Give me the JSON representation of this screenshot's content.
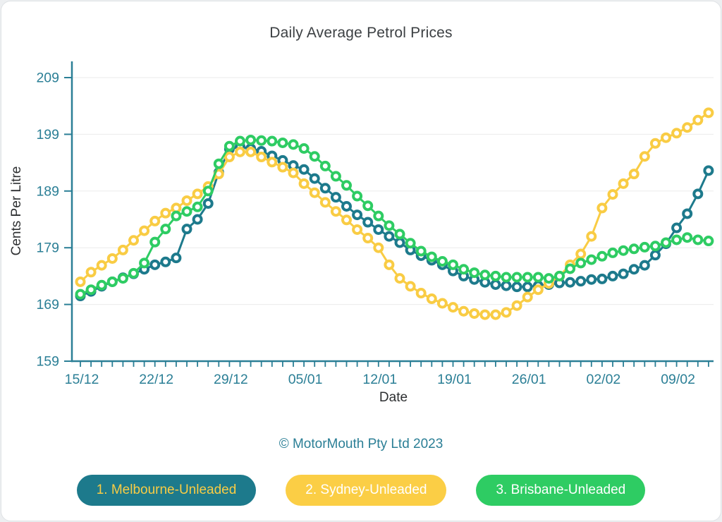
{
  "header": {
    "title": "Daily Average Petrol Prices"
  },
  "chart_data": {
    "type": "line",
    "title": "Daily Average Petrol Prices",
    "xlabel": "Date",
    "ylabel": "Cents Per Litre",
    "grid": "horizontal",
    "legend_position": "bottom",
    "marker": "hollow-circle",
    "axis_color": "#2b7f96",
    "grid_color": "#ebebeb",
    "ylim": [
      159,
      212
    ],
    "yticks": [
      159,
      169,
      179,
      189,
      199,
      209
    ],
    "x_start_date": "15/12",
    "x_end_date": "12/02",
    "x_points": 60,
    "x_tick_every_days": 7,
    "x_tick_labels": [
      "15/12",
      "22/12",
      "29/12",
      "05/01",
      "12/01",
      "19/01",
      "26/01",
      "02/02",
      "09/02"
    ],
    "series": [
      {
        "name": "1. Melbourne-Unleaded",
        "slug": "melbourne-unleaded",
        "color": "#1d7a8c",
        "values": [
          170.5,
          171.3,
          172.2,
          173.0,
          173.7,
          174.4,
          175.2,
          176.0,
          176.5,
          177.2,
          182.3,
          184.0,
          186.8,
          192.3,
          196.4,
          196.8,
          196.5,
          196.0,
          195.2,
          194.4,
          193.5,
          192.8,
          191.2,
          189.5,
          187.9,
          186.3,
          184.8,
          183.5,
          182.2,
          181.0,
          179.9,
          178.6,
          177.6,
          176.8,
          176.0,
          174.9,
          174.0,
          173.4,
          172.9,
          172.5,
          172.3,
          172.1,
          172.1,
          172.3,
          172.5,
          172.8,
          172.9,
          173.1,
          173.4,
          173.5,
          174.0,
          174.4,
          175.2,
          175.9,
          177.7,
          179.7,
          182.5,
          185.0,
          188.5,
          192.6
        ]
      },
      {
        "name": "2. Sydney-Unleaded",
        "slug": "sydney-unleaded",
        "color": "#f9cc44",
        "values": [
          173.0,
          174.7,
          175.9,
          177.1,
          178.6,
          180.3,
          182.0,
          183.7,
          185.1,
          186.0,
          187.3,
          188.5,
          189.8,
          192.0,
          195.0,
          195.9,
          195.9,
          195.0,
          194.1,
          193.2,
          192.2,
          190.3,
          188.7,
          187.0,
          185.4,
          183.9,
          182.2,
          180.7,
          179.0,
          176.0,
          173.6,
          172.2,
          171.0,
          170.0,
          169.2,
          168.5,
          167.8,
          167.4,
          167.2,
          167.2,
          167.6,
          168.8,
          170.3,
          171.6,
          172.7,
          174.0,
          176.0,
          177.9,
          181.0,
          186.0,
          188.4,
          190.3,
          192.0,
          195.1,
          197.4,
          198.4,
          199.2,
          200.2,
          201.5,
          202.8
        ]
      },
      {
        "name": "3. Brisbane-Unleaded",
        "slug": "brisbane-unleaded",
        "color": "#2ecc63",
        "values": [
          170.8,
          171.6,
          172.4,
          173.0,
          173.6,
          174.5,
          176.3,
          180.0,
          182.3,
          184.6,
          185.4,
          186.2,
          189.0,
          193.8,
          196.9,
          197.8,
          198.0,
          197.9,
          197.8,
          197.5,
          197.2,
          196.5,
          195.1,
          193.4,
          191.6,
          190.0,
          188.1,
          186.4,
          184.6,
          182.9,
          181.4,
          179.8,
          178.4,
          177.4,
          176.6,
          176.0,
          175.2,
          174.6,
          174.2,
          174.0,
          173.8,
          173.8,
          173.8,
          173.8,
          173.6,
          174.0,
          175.3,
          176.3,
          176.9,
          177.5,
          178.1,
          178.5,
          178.8,
          179.1,
          179.3,
          179.9,
          180.4,
          180.8,
          180.4,
          180.2
        ]
      }
    ]
  },
  "footer": {
    "copyright": "© MotorMouth Pty Ltd 2023"
  },
  "legend": {
    "buttons": [
      {
        "label": "1. Melbourne-Unleaded",
        "bg": "#1d7a8c",
        "fg": "#f9cc44"
      },
      {
        "label": "2. Sydney-Unleaded",
        "bg": "#fbce45",
        "fg": "#ffffff"
      },
      {
        "label": "3. Brisbane-Unleaded",
        "bg": "#2ecc63",
        "fg": "#ffffff"
      }
    ]
  }
}
